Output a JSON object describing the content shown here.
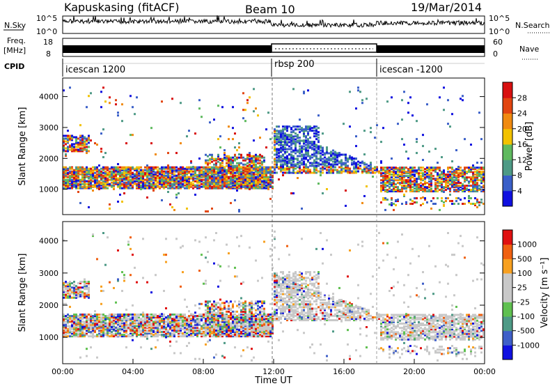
{
  "header": {
    "station": "Kapuskasing (fitACF)",
    "beam": "Beam 10",
    "date": "19/Mar/2014"
  },
  "panels": {
    "nsky_label": "N.Sky",
    "nsearch_label": "N.Search",
    "nsky_ticks": [
      "10^5",
      "10^0"
    ],
    "nsearch_ticks": [
      "10^5",
      "10^0"
    ],
    "freq_label_top": "Freq.",
    "freq_label_bottom": "[MHz]",
    "freq_ticks": [
      "18",
      "8"
    ],
    "nave_label": "Nave",
    "nave_ticks": [
      "60",
      "0"
    ],
    "cpid_label": "CPID",
    "cpid_segments": [
      {
        "name": "icescan 1200",
        "start_hour": 0
      },
      {
        "name": "rbsp 200",
        "start_hour": 12
      },
      {
        "name": "icescan -1200",
        "start_hour": 18
      }
    ]
  },
  "chart_data": [
    {
      "type": "heatmap",
      "name": "power",
      "ylabel": "Slant Range [km]",
      "ylim": [
        180,
        4600
      ],
      "yticks": [
        1000,
        2000,
        3000,
        4000
      ],
      "xlim_hours": [
        0,
        24
      ],
      "colorbar_label": "Power [dB]",
      "colorbar_ticks": [
        "4",
        "8",
        "12",
        "16",
        "20",
        "24",
        "28"
      ],
      "colorbar_colors": [
        "#1010e0",
        "#3a5fc8",
        "#4e9a86",
        "#5fba5f",
        "#f2c200",
        "#f08a10",
        "#e24510",
        "#d81010"
      ]
    },
    {
      "type": "heatmap",
      "name": "velocity",
      "ylabel": "Slant Range [km]",
      "ylim": [
        180,
        4600
      ],
      "yticks": [
        1000,
        2000,
        3000,
        4000
      ],
      "xlim_hours": [
        0,
        24
      ],
      "xlabel": "Time UT",
      "xticks": [
        "00:00",
        "04:00",
        "08:00",
        "12:00",
        "16:00",
        "20:00",
        "00:00"
      ],
      "colorbar_label": "Velocity [m s⁻¹]",
      "colorbar_ticks": [
        "1000",
        "500",
        "100",
        "25",
        "-25",
        "-100",
        "-500",
        "-1000"
      ],
      "colorbar_colors": [
        "#1010e0",
        "#3f5fc8",
        "#4e9a86",
        "#5fc050",
        "#c8c8c8",
        "#c8c8c8",
        "#f7a020",
        "#f06010",
        "#e01010"
      ]
    }
  ]
}
